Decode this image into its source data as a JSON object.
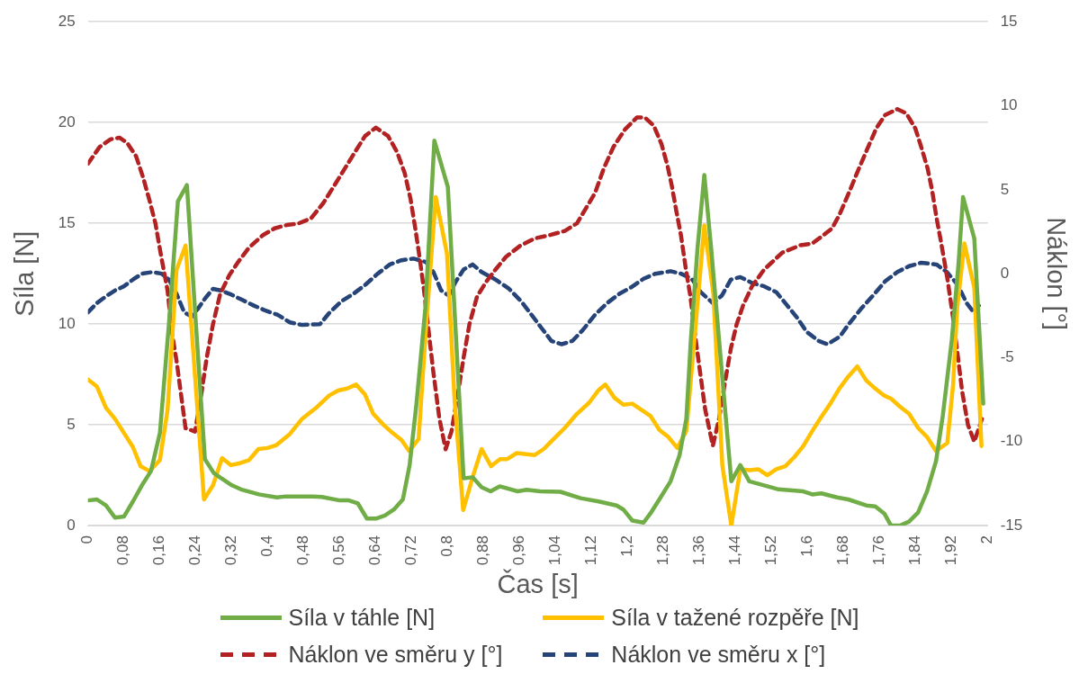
{
  "chart_data": {
    "type": "line",
    "xlabel": "Čas [s]",
    "ylabel": "Síla [N]",
    "y2label": "Náklon [°]",
    "xlim": [
      0,
      2
    ],
    "ylim": [
      0,
      25
    ],
    "y2lim": [
      -15,
      15
    ],
    "xticks": [
      0,
      {
        "value": 0.08,
        "label": "0,08"
      },
      {
        "value": 0.16,
        "label": "0,16"
      },
      {
        "value": 0.24,
        "label": "0,24"
      },
      {
        "value": 0.32,
        "label": "0,32"
      },
      {
        "value": 0.4,
        "label": "0,4"
      },
      {
        "value": 0.48,
        "label": "0,48"
      },
      {
        "value": 0.56,
        "label": "0,56"
      },
      {
        "value": 0.64,
        "label": "0,64"
      },
      {
        "value": 0.72,
        "label": "0,72"
      },
      {
        "value": 0.8,
        "label": "0,8"
      },
      {
        "value": 0.88,
        "label": "0,88"
      },
      {
        "value": 0.96,
        "label": "0,96"
      },
      {
        "value": 1.04,
        "label": "1,04"
      },
      {
        "value": 1.12,
        "label": "1,12"
      },
      {
        "value": 1.2,
        "label": "1,2"
      },
      {
        "value": 1.28,
        "label": "1,28"
      },
      {
        "value": 1.36,
        "label": "1,36"
      },
      {
        "value": 1.44,
        "label": "1,44"
      },
      {
        "value": 1.52,
        "label": "1,52"
      },
      {
        "value": 1.6,
        "label": "1,6"
      },
      {
        "value": 1.68,
        "label": "1,68"
      },
      {
        "value": 1.76,
        "label": "1,76"
      },
      {
        "value": 1.84,
        "label": "1,84"
      },
      {
        "value": 1.92,
        "label": "1,92"
      },
      2
    ],
    "yticks": [
      0,
      5,
      10,
      15,
      20,
      25
    ],
    "y2ticks": [
      -15,
      -10,
      -5,
      0,
      5,
      10,
      15
    ],
    "grid": "y",
    "legend": "bottom",
    "marker": "none",
    "series": [
      {
        "name": "Síla v táhle [N]",
        "color": "#70ad47",
        "x": [
          0,
          0.02,
          0.04,
          0.06,
          0.08,
          0.1,
          0.12,
          0.14,
          0.16,
          0.18,
          0.2,
          0.22,
          0.24,
          0.26,
          0.28,
          0.32,
          0.34,
          0.38,
          0.42,
          0.44,
          0.5,
          0.52,
          0.56,
          0.58,
          0.6,
          0.62,
          0.64,
          0.66,
          0.68,
          0.7,
          0.715,
          0.73,
          0.75,
          0.77,
          0.8,
          0.835,
          0.855,
          0.875,
          0.895,
          0.915,
          0.955,
          0.975,
          1.005,
          1.05,
          1.095,
          1.135,
          1.175,
          1.19,
          1.21,
          1.235,
          1.25,
          1.27,
          1.295,
          1.315,
          1.33,
          1.34,
          1.355,
          1.37,
          1.385,
          1.43,
          1.45,
          1.47,
          1.51,
          1.535,
          1.59,
          1.61,
          1.63,
          1.665,
          1.69,
          1.73,
          1.75,
          1.77,
          1.785,
          1.805,
          1.825,
          1.845,
          1.865,
          1.885,
          1.9,
          1.92,
          1.935,
          1.945,
          1.97,
          1.99
        ],
        "values": [
          1.25,
          1.3,
          1.0,
          0.4,
          0.45,
          1.2,
          2.0,
          2.7,
          4.6,
          10,
          16.1,
          16.9,
          10,
          3.3,
          2.6,
          2.0,
          1.8,
          1.55,
          1.4,
          1.45,
          1.45,
          1.42,
          1.25,
          1.25,
          1.1,
          0.35,
          0.35,
          0.5,
          0.8,
          1.3,
          3.0,
          6.0,
          10.8,
          19.1,
          16.8,
          2.35,
          2.4,
          1.9,
          1.7,
          1.95,
          1.7,
          1.78,
          1.7,
          1.68,
          1.36,
          1.2,
          1.0,
          0.8,
          0.25,
          0.15,
          0.6,
          1.3,
          2.2,
          3.5,
          5.3,
          9.2,
          13.8,
          17.4,
          13.8,
          2.2,
          3.0,
          2.2,
          1.95,
          1.8,
          1.7,
          1.55,
          1.6,
          1.4,
          1.3,
          1.0,
          0.95,
          0.6,
          0,
          0,
          0.2,
          0.65,
          1.7,
          3.2,
          5.45,
          9.2,
          13.0,
          16.3,
          14.25,
          6.05
        ]
      },
      {
        "name": "Síla v tažené rozpěře [N]",
        "color": "#ffc000",
        "x": [
          0,
          0.02,
          0.04,
          0.06,
          0.08,
          0.1,
          0.117,
          0.137,
          0.16,
          0.177,
          0.185,
          0.197,
          0.217,
          0.258,
          0.278,
          0.298,
          0.318,
          0.338,
          0.358,
          0.379,
          0.399,
          0.419,
          0.449,
          0.476,
          0.51,
          0.536,
          0.556,
          0.576,
          0.596,
          0.616,
          0.634,
          0.657,
          0.677,
          0.697,
          0.714,
          0.735,
          0.751,
          0.773,
          0.798,
          0.815,
          0.834,
          0.855,
          0.875,
          0.896,
          0.916,
          0.932,
          0.953,
          0.993,
          1.013,
          1.033,
          1.06,
          1.087,
          1.114,
          1.134,
          1.15,
          1.17,
          1.19,
          1.21,
          1.23,
          1.25,
          1.27,
          1.29,
          1.31,
          1.33,
          1.345,
          1.37,
          1.39,
          1.41,
          1.43,
          1.45,
          1.47,
          1.49,
          1.51,
          1.53,
          1.55,
          1.57,
          1.59,
          1.61,
          1.63,
          1.65,
          1.67,
          1.69,
          1.71,
          1.73,
          1.75,
          1.77,
          1.785,
          1.805,
          1.825,
          1.845,
          1.865,
          1.885,
          1.91,
          1.923,
          1.932,
          1.948,
          1.97,
          1.986
        ],
        "values": [
          7.25,
          6.9,
          5.85,
          5.3,
          4.6,
          3.9,
          2.95,
          2.7,
          3.25,
          5.75,
          8.5,
          12.7,
          13.9,
          1.3,
          2.0,
          3.35,
          3.0,
          3.1,
          3.25,
          3.8,
          3.85,
          4.0,
          4.55,
          5.3,
          5.9,
          6.45,
          6.7,
          6.8,
          7.0,
          6.5,
          5.55,
          5.0,
          4.6,
          4.25,
          3.7,
          4.3,
          9.7,
          16.3,
          13.5,
          6.2,
          0.77,
          2.4,
          3.8,
          2.95,
          3.3,
          3.3,
          3.6,
          3.5,
          3.8,
          4.25,
          4.85,
          5.55,
          6.1,
          6.7,
          7.0,
          6.35,
          6.0,
          6.05,
          5.75,
          5.45,
          4.75,
          4.4,
          3.85,
          4.7,
          8.5,
          14.9,
          11.5,
          3.0,
          0,
          2.8,
          2.75,
          2.8,
          2.5,
          2.8,
          2.95,
          3.4,
          3.95,
          4.7,
          5.4,
          6.05,
          6.8,
          7.4,
          7.9,
          7.2,
          6.8,
          6.45,
          6.3,
          5.9,
          5.55,
          4.85,
          4.4,
          3.7,
          4.1,
          7.0,
          10.8,
          14.0,
          11.8,
          3.95
        ]
      },
      {
        "name": "Náklon ve směru y [°]",
        "color": "#b22222",
        "axis": "y2",
        "line_style": "dashed",
        "x": [
          0,
          0.026,
          0.05,
          0.07,
          0.087,
          0.107,
          0.123,
          0.137,
          0.15,
          0.163,
          0.177,
          0.187,
          0.197,
          0.207,
          0.217,
          0.238,
          0.251,
          0.264,
          0.278,
          0.294,
          0.314,
          0.334,
          0.358,
          0.389,
          0.415,
          0.442,
          0.469,
          0.496,
          0.523,
          0.55,
          0.573,
          0.596,
          0.616,
          0.64,
          0.667,
          0.687,
          0.704,
          0.717,
          0.727,
          0.737,
          0.747,
          0.757,
          0.767,
          0.781,
          0.795,
          0.808,
          0.822,
          0.835,
          0.848,
          0.865,
          0.886,
          0.906,
          0.929,
          0.96,
          0.993,
          1.027,
          1.06,
          1.087,
          1.107,
          1.127,
          1.147,
          1.168,
          1.194,
          1.22,
          1.238,
          1.258,
          1.275,
          1.288,
          1.298,
          1.308,
          1.318,
          1.328,
          1.339,
          1.349,
          1.359,
          1.372,
          1.389,
          1.403,
          1.416,
          1.429,
          1.442,
          1.456,
          1.476,
          1.503,
          1.543,
          1.584,
          1.61,
          1.63,
          1.654,
          1.671,
          1.691,
          1.711,
          1.731,
          1.752,
          1.772,
          1.799,
          1.819,
          1.839,
          1.852,
          1.866,
          1.876,
          1.886,
          1.896,
          1.91,
          1.923,
          1.933,
          1.943,
          1.956,
          1.97,
          1.987
        ],
        "values": [
          6.55,
          7.55,
          8.0,
          8.1,
          7.8,
          7.0,
          5.7,
          4.35,
          3.0,
          1.0,
          -1.0,
          -3.55,
          -5.2,
          -7.2,
          -9.2,
          -9.4,
          -7.35,
          -5.0,
          -3.0,
          -1.2,
          -0.1,
          0.7,
          1.55,
          2.3,
          2.7,
          2.9,
          3.0,
          3.3,
          4.2,
          5.35,
          6.35,
          7.35,
          8.2,
          8.7,
          8.2,
          7.25,
          6.0,
          4.45,
          2.8,
          1.0,
          -1.0,
          -3.35,
          -5.7,
          -8.6,
          -10.45,
          -9.4,
          -7.2,
          -5.0,
          -3.0,
          -1.35,
          -0.45,
          0.25,
          1.0,
          1.65,
          2.1,
          2.3,
          2.55,
          3.0,
          3.9,
          4.8,
          6.3,
          7.55,
          8.6,
          9.3,
          9.3,
          8.8,
          7.7,
          6.45,
          5.2,
          3.7,
          2.3,
          0.45,
          -1.35,
          -3.55,
          -5.55,
          -8.1,
          -10.25,
          -8.6,
          -6.45,
          -4.45,
          -3.0,
          -1.9,
          -0.75,
          0.25,
          1.25,
          1.7,
          1.8,
          2.2,
          2.7,
          3.55,
          4.8,
          6.1,
          7.35,
          8.65,
          9.45,
          9.8,
          9.55,
          8.65,
          7.55,
          6.3,
          5.0,
          3.35,
          1.9,
          -0.25,
          -2.65,
          -4.8,
          -7.0,
          -9.0,
          -10.0,
          -8.65
        ]
      },
      {
        "name": "Náklon ve směru x [°]",
        "color": "#264478",
        "axis": "y2",
        "line_style": "dashed",
        "x": [
          0,
          0.02,
          0.04,
          0.06,
          0.08,
          0.1,
          0.12,
          0.144,
          0.164,
          0.18,
          0.197,
          0.214,
          0.231,
          0.244,
          0.261,
          0.278,
          0.295,
          0.315,
          0.342,
          0.369,
          0.395,
          0.422,
          0.449,
          0.476,
          0.516,
          0.536,
          0.563,
          0.59,
          0.617,
          0.644,
          0.671,
          0.697,
          0.724,
          0.751,
          0.768,
          0.785,
          0.802,
          0.818,
          0.835,
          0.855,
          0.875,
          0.906,
          0.936,
          0.963,
          0.986,
          1.01,
          1.03,
          1.053,
          1.077,
          1.1,
          1.127,
          1.154,
          1.181,
          1.208,
          1.235,
          1.261,
          1.295,
          1.318,
          1.342,
          1.362,
          1.389,
          1.409,
          1.429,
          1.45,
          1.476,
          1.503,
          1.53,
          1.55,
          1.577,
          1.597,
          1.624,
          1.644,
          1.671,
          1.691,
          1.718,
          1.745,
          1.772,
          1.799,
          1.825,
          1.852,
          1.886,
          1.909,
          1.933,
          1.953,
          1.966,
          1.98
        ],
        "values": [
          -2.3,
          -1.75,
          -1.35,
          -1.0,
          -0.75,
          -0.35,
          0,
          0.1,
          0,
          -0.35,
          -1.2,
          -2.3,
          -2.55,
          -2.1,
          -1.45,
          -0.9,
          -1.0,
          -1.2,
          -1.55,
          -1.9,
          -2.2,
          -2.45,
          -2.9,
          -3.05,
          -3.0,
          -2.35,
          -1.65,
          -1.2,
          -0.65,
          0,
          0.55,
          0.8,
          0.9,
          0.7,
          0.1,
          -1.0,
          -1.3,
          -0.45,
          0.25,
          0.55,
          0.1,
          -0.35,
          -0.9,
          -1.65,
          -2.45,
          -3.3,
          -4.0,
          -4.2,
          -4.0,
          -3.35,
          -2.45,
          -1.75,
          -1.2,
          -0.8,
          -0.3,
          0,
          0.15,
          0,
          -0.3,
          -1.1,
          -1.75,
          -1.3,
          -0.35,
          -0.2,
          -0.55,
          -0.75,
          -1.1,
          -1.75,
          -2.65,
          -3.45,
          -4.0,
          -4.2,
          -3.75,
          -3.0,
          -2.1,
          -1.3,
          -0.45,
          0.1,
          0.45,
          0.65,
          0.55,
          0.1,
          -0.65,
          -1.75,
          -2.2,
          -1.9
        ]
      }
    ]
  }
}
